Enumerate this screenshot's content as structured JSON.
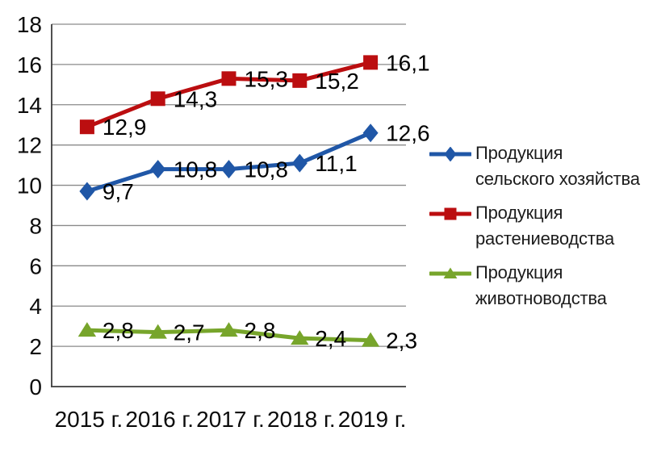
{
  "chart_data": {
    "type": "line",
    "title": "",
    "categories": [
      "2015 г.",
      "2016 г.",
      "2017 г.",
      "2018 г.",
      "2019 г."
    ],
    "series": [
      {
        "name": "Продукция сельского хозяйства",
        "values": [
          9.7,
          10.8,
          10.8,
          11.1,
          12.6
        ],
        "display_labels": [
          "9,7",
          "10,8",
          "10,8",
          "11,1",
          "12,6"
        ],
        "color": "#2057A7",
        "marker": "diamond"
      },
      {
        "name": "Продукция растениеводства",
        "values": [
          12.9,
          14.3,
          15.3,
          15.2,
          16.1
        ],
        "display_labels": [
          "12,9",
          "14,3",
          "15,3",
          "15,2",
          "16,1"
        ],
        "color": "#BB0E10",
        "marker": "square"
      },
      {
        "name": "Продукция животноводства",
        "values": [
          2.8,
          2.7,
          2.8,
          2.4,
          2.3
        ],
        "display_labels": [
          "2,8",
          "2,7",
          "2,8",
          "2,4",
          "2,3"
        ],
        "color": "#77A52B",
        "marker": "triangle"
      }
    ],
    "ylim": [
      0,
      18
    ],
    "ytick_step": 2,
    "ytick_labels": [
      "0",
      "2",
      "4",
      "6",
      "8",
      "10",
      "12",
      "14",
      "16",
      "18"
    ],
    "grid": true,
    "legend_position": "right",
    "colors": {
      "gridline": "#8a8a8a",
      "axis": "#3c3c3c",
      "tick_text": "#0c0c0c",
      "data_label_text": "#000000"
    }
  }
}
